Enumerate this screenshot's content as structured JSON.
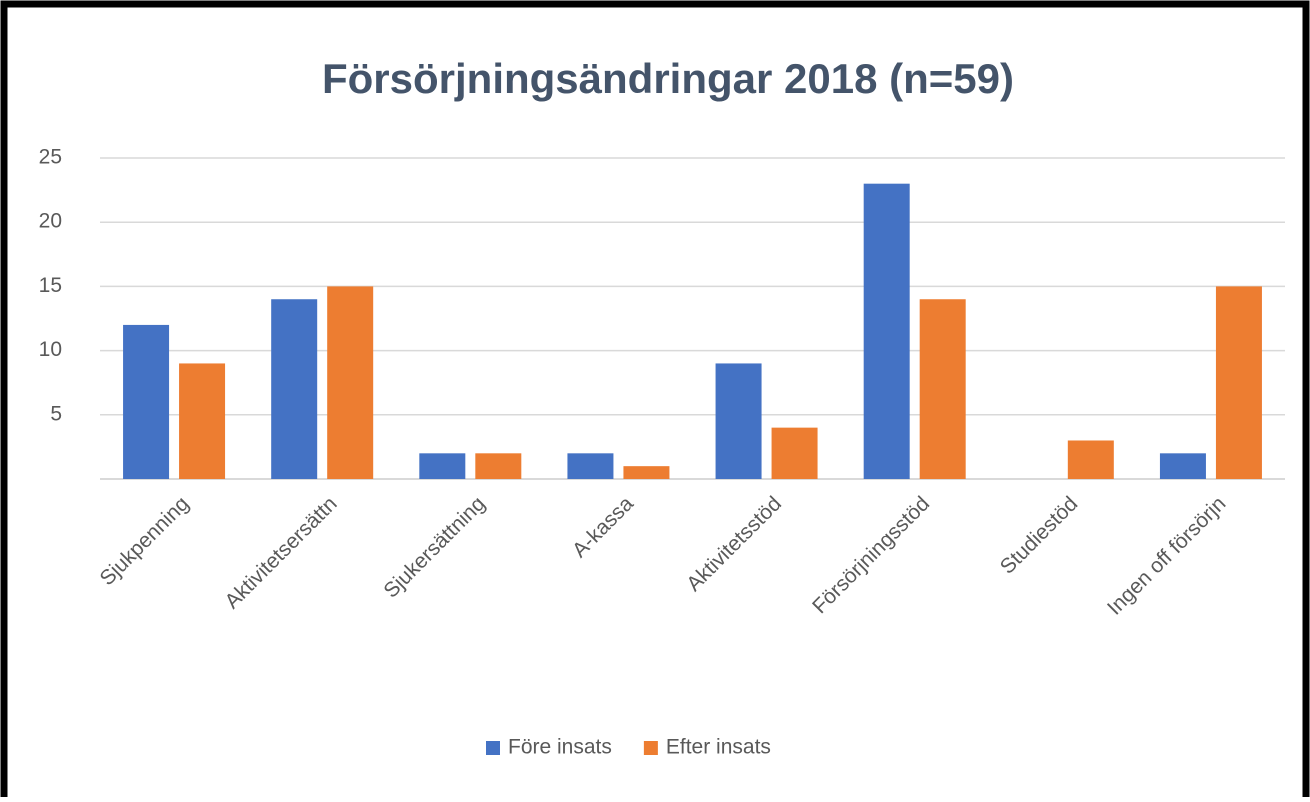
{
  "chart_data": {
    "type": "bar",
    "title": "Försörjningsändringar 2018 (n=59)",
    "categories": [
      "Sjukpenning",
      "Aktivitetsersättn",
      "Sjukersättning",
      "A-kassa",
      "Aktivitetsstöd",
      "Försörjningsstöd",
      "Studiestöd",
      "Ingen off försörjn"
    ],
    "series": [
      {
        "name": "Före insats",
        "color": "#4472c4",
        "values": [
          12,
          14,
          2,
          2,
          9,
          23,
          0,
          2
        ]
      },
      {
        "name": "Efter insats",
        "color": "#ed7d31",
        "values": [
          9,
          15,
          2,
          1,
          4,
          14,
          3,
          15
        ]
      }
    ],
    "ylim": [
      0,
      25
    ],
    "yticks": [
      5,
      10,
      15,
      20,
      25
    ],
    "grid": true,
    "legend": "bottom"
  }
}
